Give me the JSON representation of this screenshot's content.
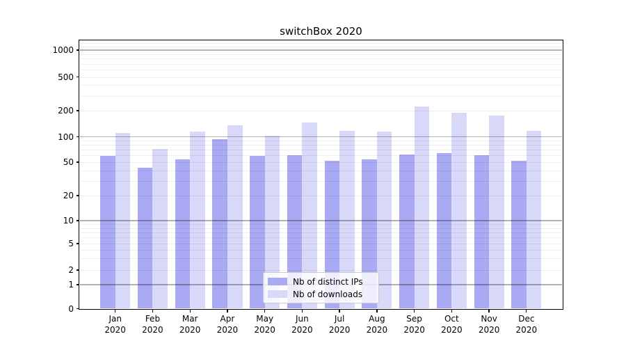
{
  "figure": {
    "title": "switchBox 2020"
  },
  "chart_data": {
    "type": "bar",
    "title": "switchBox 2020",
    "yscale": "symlog",
    "grid": true,
    "legend_position": "lower center",
    "categories": [
      "Jan 2020",
      "Feb 2020",
      "Mar 2020",
      "Apr 2020",
      "May 2020",
      "Jun 2020",
      "Jul 2020",
      "Aug 2020",
      "Sep 2020",
      "Oct 2020",
      "Nov 2020",
      "Dec 2020"
    ],
    "x_tick_months": [
      "Jan",
      "Feb",
      "Mar",
      "Apr",
      "May",
      "Jun",
      "Jul",
      "Aug",
      "Sep",
      "Oct",
      "Nov",
      "Dec"
    ],
    "x_tick_year": "2020",
    "y_ticks": [
      0,
      1,
      2,
      5,
      10,
      20,
      50,
      100,
      200,
      500,
      1000
    ],
    "ylim": [
      0,
      1300
    ],
    "series": [
      {
        "name": "Nb of distinct IPs",
        "color": "#a9a9f4",
        "values": [
          59,
          43,
          54,
          94,
          59,
          61,
          52,
          54,
          62,
          64,
          61,
          52
        ]
      },
      {
        "name": "Nb of downloads",
        "color": "#d8d8f8",
        "values": [
          110,
          72,
          115,
          136,
          103,
          147,
          116,
          114,
          225,
          188,
          177,
          118
        ]
      }
    ]
  }
}
